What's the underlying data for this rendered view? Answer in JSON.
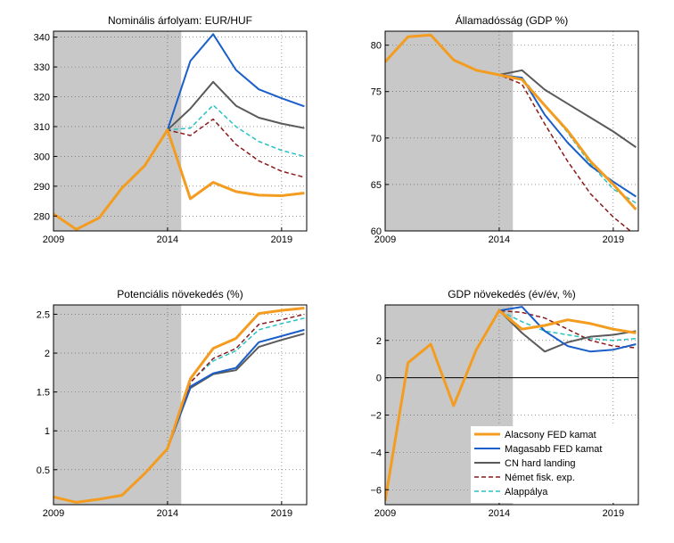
{
  "colors": {
    "low_fed": "#F39C1F",
    "high_fed": "#1A5FC9",
    "cn_hard": "#5A5A5A",
    "german_fisk": "#8B1A1A",
    "baseline": "#29C2C2",
    "shade": "#C8C8C8"
  },
  "legend": {
    "placement": "bottom-right of bottom-right panel",
    "entries": [
      {
        "name": "Alacsony FED kamat",
        "color": "#F39C1F",
        "style": "solid-thick"
      },
      {
        "name": "Magasabb FED kamat",
        "color": "#1A5FC9",
        "style": "solid"
      },
      {
        "name": "CN hard landing",
        "color": "#5A5A5A",
        "style": "solid"
      },
      {
        "name": "Német fisk. exp.",
        "color": "#8B1A1A",
        "style": "dashed"
      },
      {
        "name": "Alappálya",
        "color": "#29C2C2",
        "style": "dashed"
      }
    ]
  },
  "chart_data": [
    {
      "type": "line",
      "title": "Nominális árfolyam: EUR/HUF",
      "x": [
        2009,
        2010,
        2011,
        2012,
        2013,
        2014,
        2015,
        2016,
        2017,
        2018,
        2019,
        2020
      ],
      "xlim": [
        2009,
        2020.1
      ],
      "ylim": [
        275,
        342
      ],
      "xticks": [
        2009,
        2014,
        2019
      ],
      "yticks": [
        280,
        290,
        300,
        310,
        320,
        330,
        340
      ],
      "ytick_labels": [
        "280",
        "290",
        "300",
        "310",
        "320",
        "330",
        "340"
      ],
      "shaded_x": [
        2009,
        2014.6
      ],
      "grid": true,
      "series": [
        {
          "name": "Alappálya",
          "key": "baseline",
          "values": [
            280.7,
            275.5,
            279.4,
            289.4,
            296.9,
            308.9,
            309.5,
            317.2,
            310.0,
            305.0,
            302.0,
            300.0
          ]
        },
        {
          "name": "Német fisk. exp.",
          "key": "german_fisk",
          "values": [
            280.7,
            275.5,
            279.4,
            289.4,
            296.9,
            308.9,
            307.0,
            312.5,
            304.0,
            298.5,
            295.0,
            293.0
          ]
        },
        {
          "name": "CN hard landing",
          "key": "cn_hard",
          "values": [
            280.7,
            275.5,
            279.4,
            289.4,
            296.9,
            308.9,
            316.0,
            325.0,
            317.0,
            313.0,
            311.0,
            309.5
          ]
        },
        {
          "name": "Magasabb FED kamat",
          "key": "high_fed",
          "values": [
            280.7,
            275.5,
            279.4,
            289.4,
            296.9,
            308.9,
            332.0,
            341.0,
            329.0,
            322.5,
            319.5,
            316.8
          ]
        },
        {
          "name": "Alacsony FED kamat",
          "key": "low_fed",
          "values": [
            280.7,
            275.5,
            279.4,
            289.4,
            296.9,
            308.9,
            285.8,
            291.3,
            288.2,
            287.0,
            286.8,
            287.7
          ]
        }
      ]
    },
    {
      "type": "line",
      "title": "Államadósság (GDP %)",
      "x": [
        2009,
        2010,
        2011,
        2012,
        2013,
        2014,
        2015,
        2016,
        2017,
        2018,
        2019,
        2020
      ],
      "xlim": [
        2009,
        2020.1
      ],
      "ylim": [
        60,
        81.5
      ],
      "xticks": [
        2009,
        2014,
        2019
      ],
      "yticks": [
        60,
        65,
        70,
        75,
        80
      ],
      "ytick_labels": [
        "60",
        "65",
        "70",
        "75",
        "80"
      ],
      "shaded_x": [
        2009,
        2014.6
      ],
      "grid": true,
      "series": [
        {
          "name": "Alappálya",
          "key": "baseline",
          "values": [
            78.2,
            80.9,
            81.1,
            78.4,
            77.3,
            76.8,
            76.5,
            73.5,
            70.6,
            67.2,
            64.5,
            63.0
          ]
        },
        {
          "name": "Német fisk. exp.",
          "key": "german_fisk",
          "values": [
            78.2,
            80.9,
            81.1,
            78.4,
            77.3,
            76.8,
            75.8,
            71.5,
            67.5,
            64.0,
            61.5,
            59.5
          ]
        },
        {
          "name": "CN hard landing",
          "key": "cn_hard",
          "values": [
            78.2,
            80.9,
            81.1,
            78.4,
            77.3,
            76.8,
            77.3,
            75.2,
            73.7,
            72.2,
            70.7,
            69.0
          ]
        },
        {
          "name": "Magasabb FED kamat",
          "key": "high_fed",
          "values": [
            78.2,
            80.9,
            81.1,
            78.4,
            77.3,
            76.8,
            76.5,
            72.5,
            69.5,
            67.0,
            65.3,
            63.7
          ]
        },
        {
          "name": "Alacsony FED kamat",
          "key": "low_fed",
          "values": [
            78.2,
            80.9,
            81.1,
            78.4,
            77.3,
            76.8,
            76.3,
            73.5,
            70.8,
            67.5,
            65.0,
            62.3
          ]
        }
      ]
    },
    {
      "type": "line",
      "title": "Potenciális növekedés (%)",
      "x": [
        2009,
        2010,
        2011,
        2012,
        2013,
        2014,
        2015,
        2016,
        2017,
        2018,
        2019,
        2020
      ],
      "xlim": [
        2009,
        2020.1
      ],
      "ylim": [
        0.05,
        2.62
      ],
      "xticks": [
        2009,
        2014,
        2019
      ],
      "yticks": [
        0.5,
        1,
        1.5,
        2,
        2.5
      ],
      "ytick_labels": [
        "0.5",
        "1",
        "1.5",
        "2",
        "2.5"
      ],
      "shaded_x": [
        2009,
        2014.6
      ],
      "grid": true,
      "series": [
        {
          "name": "CN hard landing",
          "key": "cn_hard",
          "values": [
            0.15,
            0.08,
            0.12,
            0.17,
            0.45,
            0.77,
            1.55,
            1.73,
            1.78,
            2.08,
            2.17,
            2.25
          ]
        },
        {
          "name": "Magasabb FED kamat",
          "key": "high_fed",
          "values": [
            0.15,
            0.08,
            0.12,
            0.17,
            0.45,
            0.77,
            1.57,
            1.74,
            1.81,
            2.14,
            2.22,
            2.3
          ]
        },
        {
          "name": "Alappálya",
          "key": "baseline",
          "values": [
            0.15,
            0.08,
            0.12,
            0.17,
            0.45,
            0.77,
            1.63,
            1.9,
            2.03,
            2.3,
            2.38,
            2.45
          ]
        },
        {
          "name": "Német fisk. exp.",
          "key": "german_fisk",
          "values": [
            0.15,
            0.08,
            0.12,
            0.17,
            0.45,
            0.77,
            1.62,
            1.93,
            2.06,
            2.37,
            2.43,
            2.5
          ]
        },
        {
          "name": "Alacsony FED kamat",
          "key": "low_fed",
          "values": [
            0.15,
            0.08,
            0.12,
            0.17,
            0.45,
            0.77,
            1.67,
            2.06,
            2.19,
            2.51,
            2.55,
            2.58
          ]
        }
      ]
    },
    {
      "type": "line",
      "title": "GDP növekedés (év/év, %)",
      "x": [
        2009,
        2010,
        2011,
        2012,
        2013,
        2014,
        2015,
        2016,
        2017,
        2018,
        2019,
        2020
      ],
      "xlim": [
        2009,
        2020.1
      ],
      "ylim": [
        -6.8,
        3.9
      ],
      "xticks": [
        2009,
        2014,
        2019
      ],
      "yticks": [
        -6,
        -4,
        -2,
        0,
        2
      ],
      "ytick_labels": [
        "−6",
        "−4",
        "−2",
        "0",
        "2"
      ],
      "shaded_x": [
        2009,
        2014.6
      ],
      "zero_line": true,
      "grid": true,
      "series": [
        {
          "name": "Alappálya",
          "key": "baseline",
          "values": [
            -6.6,
            0.8,
            1.8,
            -1.5,
            1.5,
            3.6,
            3.0,
            2.5,
            2.3,
            2.1,
            2.0,
            2.1
          ]
        },
        {
          "name": "Német fisk. exp.",
          "key": "german_fisk",
          "values": [
            -6.6,
            0.8,
            1.8,
            -1.5,
            1.5,
            3.6,
            3.5,
            3.2,
            2.6,
            2.0,
            1.7,
            1.6
          ]
        },
        {
          "name": "CN hard landing",
          "key": "cn_hard",
          "values": [
            -6.6,
            0.8,
            1.8,
            -1.5,
            1.5,
            3.6,
            2.4,
            1.4,
            1.9,
            2.2,
            2.3,
            2.5
          ]
        },
        {
          "name": "Magasabb FED kamat",
          "key": "high_fed",
          "values": [
            -6.6,
            0.8,
            1.8,
            -1.5,
            1.5,
            3.6,
            3.8,
            2.5,
            1.7,
            1.4,
            1.5,
            1.8
          ]
        },
        {
          "name": "Alacsony FED kamat",
          "key": "low_fed",
          "values": [
            -6.6,
            0.8,
            1.8,
            -1.5,
            1.5,
            3.6,
            2.6,
            2.8,
            3.1,
            2.9,
            2.6,
            2.4
          ]
        }
      ]
    }
  ]
}
